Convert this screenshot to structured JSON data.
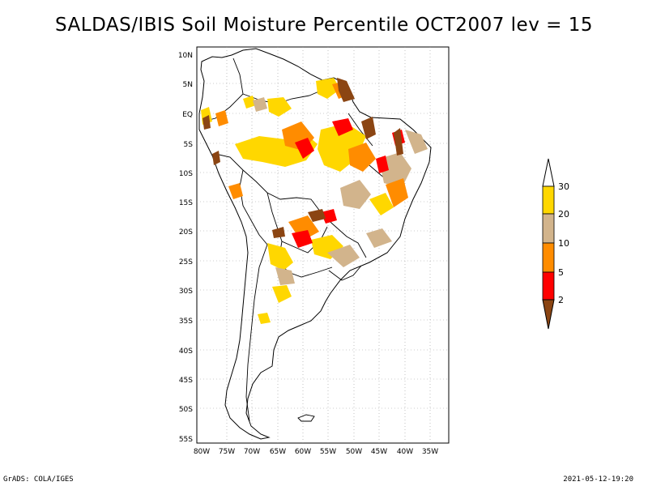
{
  "title": "SALDAS/IBIS Soil Moisture Percentile OCT2007 lev = 15",
  "footer": {
    "left": "GrADS: COLA/IGES",
    "right": "2021-05-12-19:20"
  },
  "map": {
    "lon_labels": [
      "80W",
      "75W",
      "70W",
      "65W",
      "60W",
      "55W",
      "50W",
      "45W",
      "40W",
      "35W"
    ],
    "lat_labels": [
      "10N",
      "5N",
      "EQ",
      "5S",
      "10S",
      "15S",
      "20S",
      "25S",
      "30S",
      "35S",
      "40S",
      "45S",
      "50S",
      "55S"
    ]
  },
  "legend": {
    "labels": [
      "2",
      "5",
      "10",
      "20",
      "30"
    ],
    "colors": {
      "lt2": "#8B4513",
      "2to5": "#FF0000",
      "5to10": "#FF8C00",
      "10to20": "#D2B48C",
      "20to30": "#FFD700",
      "gt30": "#FFFFFF"
    }
  }
}
